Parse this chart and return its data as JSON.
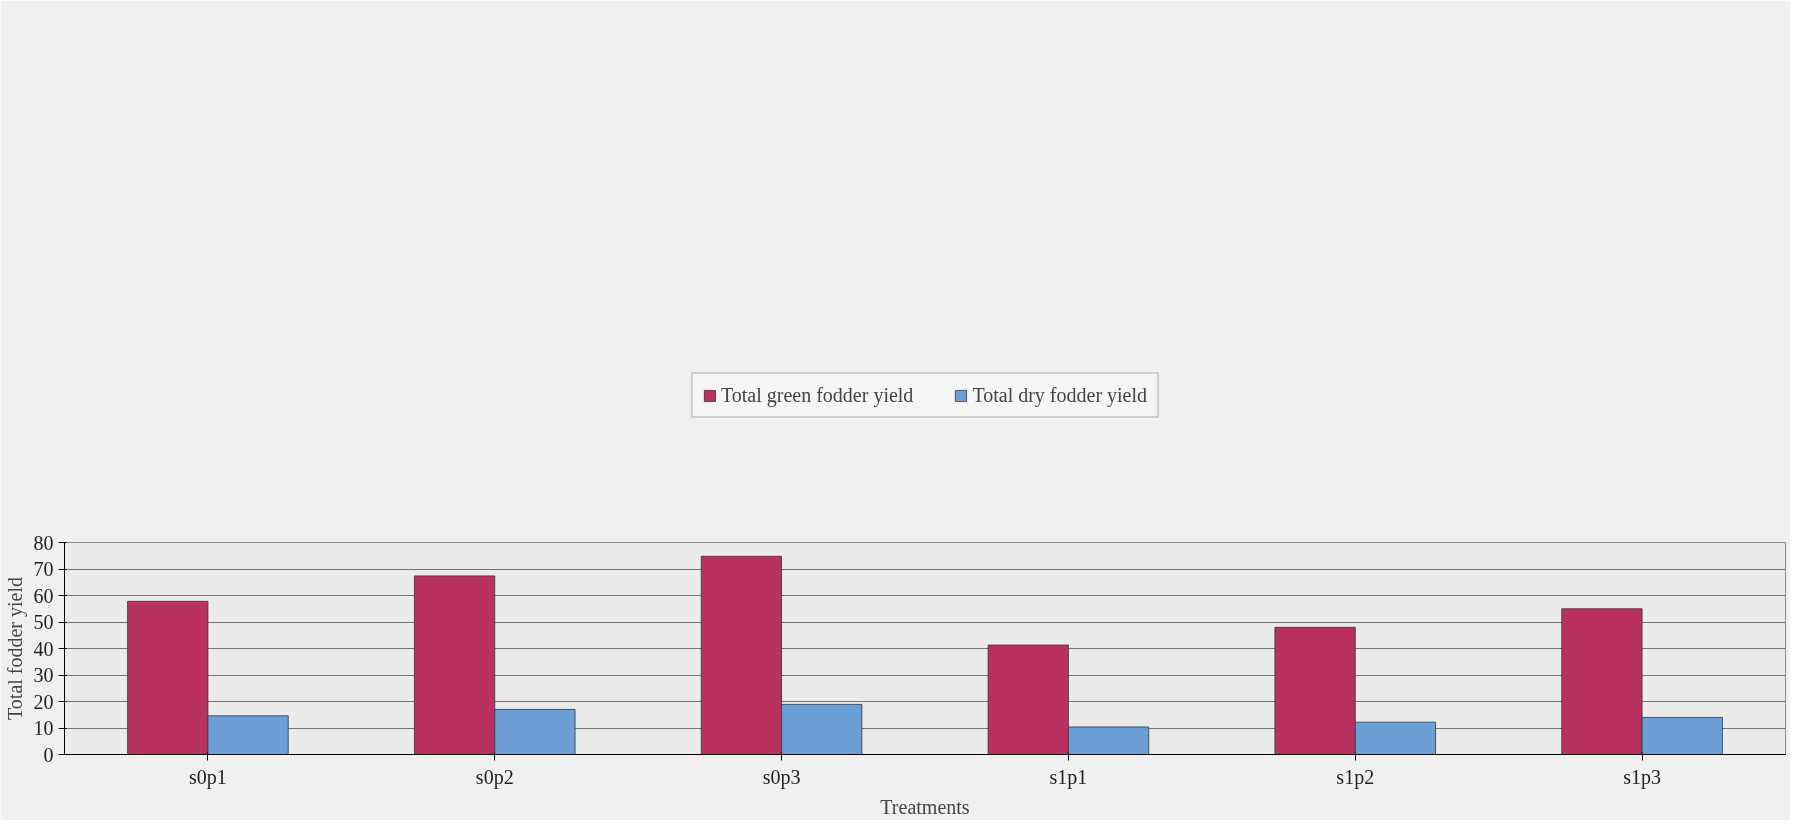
{
  "chart_data": {
    "type": "bar",
    "xlabel": "Treatments",
    "ylabel": "Total fodder yield",
    "categories": [
      "s0p1",
      "s0p2",
      "s0p3",
      "s1p1",
      "s1p2",
      "s1p3"
    ],
    "series": [
      {
        "name": "Total green fodder yield",
        "color": "#b8315f",
        "values": [
          57.8,
          67.4,
          74.8,
          41.3,
          48.0,
          55.0
        ]
      },
      {
        "name": "Total dry fodder yield",
        "color": "#6c9fd6",
        "values": [
          14.6,
          17.0,
          18.9,
          10.4,
          12.2,
          14.0
        ]
      }
    ],
    "ylim": [
      0,
      80
    ],
    "yticks": [
      0,
      10,
      20,
      30,
      40,
      50,
      60,
      70,
      80
    ],
    "grid": "y",
    "legend": "top"
  }
}
